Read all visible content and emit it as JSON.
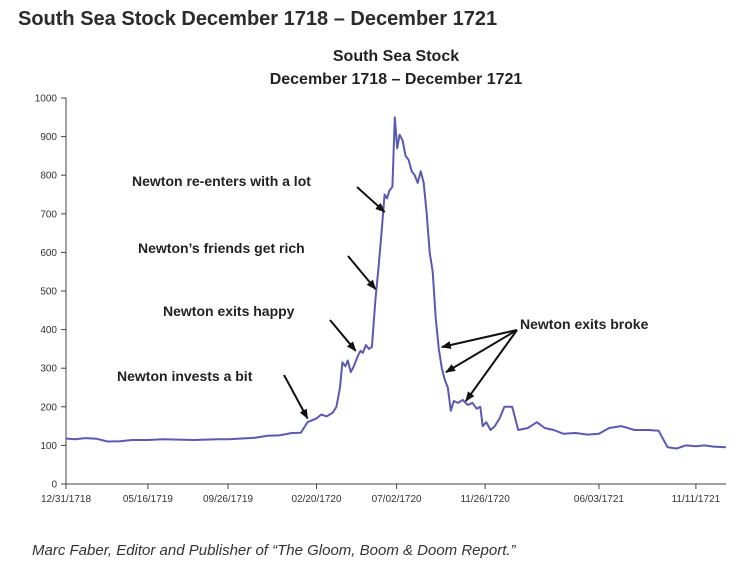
{
  "page": {
    "heading": "South Sea Stock December 1718 – December 1721",
    "caption": "Marc Faber, Editor and Publisher of “The Gloom, Boom & Doom Report.”"
  },
  "colors": {
    "line": "#5a5ab4",
    "axis": "#444444",
    "text": "#222222",
    "arrow": "#111111"
  },
  "chart_data": {
    "type": "line",
    "title": [
      "South Sea Stock",
      "December 1718 – December 1721"
    ],
    "xlabel": "",
    "ylabel": "",
    "ylim": [
      0,
      1000
    ],
    "yticks": [
      0,
      100,
      200,
      300,
      400,
      500,
      600,
      700,
      800,
      900,
      1000
    ],
    "xlim": [
      "1718-12-31",
      "1721-12-31"
    ],
    "xticks": [
      {
        "date": "1718-12-31",
        "label": "12/31/1718"
      },
      {
        "date": "1719-05-16",
        "label": "05/16/1719"
      },
      {
        "date": "1719-09-26",
        "label": "09/26/1719"
      },
      {
        "date": "1720-02-20",
        "label": "02/20/1720"
      },
      {
        "date": "1720-07-02",
        "label": "07/02/1720"
      },
      {
        "date": "1720-11-26",
        "label": "11/26/1720"
      },
      {
        "date": "1721-06-03",
        "label": "06/03/1721"
      },
      {
        "date": "1721-11-11",
        "label": "11/11/1721"
      }
    ],
    "grid": false,
    "legend": "none",
    "series": [
      {
        "points": [
          [
            "1718-12-31",
            118
          ],
          [
            "1719-01-15",
            116
          ],
          [
            "1719-02-01",
            119
          ],
          [
            "1719-02-20",
            117
          ],
          [
            "1719-03-10",
            110
          ],
          [
            "1719-03-31",
            111
          ],
          [
            "1719-04-20",
            114
          ],
          [
            "1719-05-16",
            114
          ],
          [
            "1719-06-10",
            116
          ],
          [
            "1719-07-05",
            115
          ],
          [
            "1719-07-31",
            114
          ],
          [
            "1719-08-20",
            115
          ],
          [
            "1719-09-10",
            116
          ],
          [
            "1719-09-26",
            116
          ],
          [
            "1719-10-20",
            118
          ],
          [
            "1719-11-10",
            120
          ],
          [
            "1719-12-01",
            125
          ],
          [
            "1719-12-20",
            126
          ],
          [
            "1720-01-10",
            132
          ],
          [
            "1720-01-25",
            133
          ],
          [
            "1720-02-05",
            160
          ],
          [
            "1720-02-20",
            170
          ],
          [
            "1720-02-28",
            180
          ],
          [
            "1720-03-08",
            175
          ],
          [
            "1720-03-18",
            185
          ],
          [
            "1720-03-24",
            200
          ],
          [
            "1720-03-30",
            250
          ],
          [
            "1720-04-03",
            315
          ],
          [
            "1720-04-08",
            305
          ],
          [
            "1720-04-12",
            320
          ],
          [
            "1720-04-17",
            290
          ],
          [
            "1720-04-22",
            305
          ],
          [
            "1720-04-28",
            330
          ],
          [
            "1720-05-03",
            345
          ],
          [
            "1720-05-07",
            340
          ],
          [
            "1720-05-12",
            360
          ],
          [
            "1720-05-17",
            350
          ],
          [
            "1720-05-22",
            355
          ],
          [
            "1720-05-28",
            480
          ],
          [
            "1720-06-02",
            560
          ],
          [
            "1720-06-07",
            650
          ],
          [
            "1720-06-12",
            750
          ],
          [
            "1720-06-16",
            740
          ],
          [
            "1720-06-20",
            760
          ],
          [
            "1720-06-25",
            770
          ],
          [
            "1720-06-29",
            950
          ],
          [
            "1720-07-03",
            870
          ],
          [
            "1720-07-07",
            905
          ],
          [
            "1720-07-12",
            890
          ],
          [
            "1720-07-17",
            850
          ],
          [
            "1720-07-22",
            840
          ],
          [
            "1720-07-27",
            810
          ],
          [
            "1720-08-01",
            800
          ],
          [
            "1720-08-06",
            780
          ],
          [
            "1720-08-11",
            810
          ],
          [
            "1720-08-16",
            780
          ],
          [
            "1720-08-21",
            700
          ],
          [
            "1720-08-26",
            600
          ],
          [
            "1720-08-31",
            550
          ],
          [
            "1720-09-05",
            430
          ],
          [
            "1720-09-10",
            350
          ],
          [
            "1720-09-15",
            300
          ],
          [
            "1720-09-20",
            270
          ],
          [
            "1720-09-25",
            250
          ],
          [
            "1720-09-30",
            190
          ],
          [
            "1720-10-05",
            215
          ],
          [
            "1720-10-12",
            210
          ],
          [
            "1720-10-20",
            218
          ],
          [
            "1720-10-28",
            205
          ],
          [
            "1720-11-05",
            210
          ],
          [
            "1720-11-12",
            195
          ],
          [
            "1720-11-18",
            200
          ],
          [
            "1720-11-22",
            150
          ],
          [
            "1720-11-28",
            160
          ],
          [
            "1720-12-05",
            140
          ],
          [
            "1720-12-12",
            150
          ],
          [
            "1720-12-20",
            170
          ],
          [
            "1720-12-28",
            200
          ],
          [
            "1721-01-10",
            200
          ],
          [
            "1721-01-20",
            140
          ],
          [
            "1721-02-05",
            145
          ],
          [
            "1721-02-20",
            160
          ],
          [
            "1721-03-05",
            145
          ],
          [
            "1721-03-20",
            140
          ],
          [
            "1721-04-05",
            130
          ],
          [
            "1721-04-25",
            132
          ],
          [
            "1721-05-15",
            128
          ],
          [
            "1721-06-03",
            130
          ],
          [
            "1721-06-20",
            145
          ],
          [
            "1721-07-10",
            150
          ],
          [
            "1721-08-01",
            140
          ],
          [
            "1721-08-25",
            140
          ],
          [
            "1721-09-10",
            138
          ],
          [
            "1721-09-25",
            95
          ],
          [
            "1721-10-10",
            92
          ],
          [
            "1721-10-25",
            100
          ],
          [
            "1721-11-11",
            98
          ],
          [
            "1721-11-25",
            100
          ],
          [
            "1721-12-10",
            97
          ],
          [
            "1721-12-31",
            95
          ]
        ]
      }
    ],
    "annotations": [
      {
        "text": "Newton invests a bit",
        "target": [
          "1720-02-05",
          170
        ]
      },
      {
        "text": "Newton exits happy",
        "target": [
          "1720-04-25",
          345
        ]
      },
      {
        "text": "Newton’s friends get rich",
        "target": [
          "1720-05-28",
          505
        ]
      },
      {
        "text": "Newton re-enters with a lot",
        "target": [
          "1720-06-12",
          705
        ]
      },
      {
        "text": "Newton exits broke",
        "targets": [
          [
            "1720-09-15",
            355
          ],
          [
            "1720-09-22",
            290
          ],
          [
            "1720-10-25",
            215
          ]
        ]
      }
    ]
  }
}
